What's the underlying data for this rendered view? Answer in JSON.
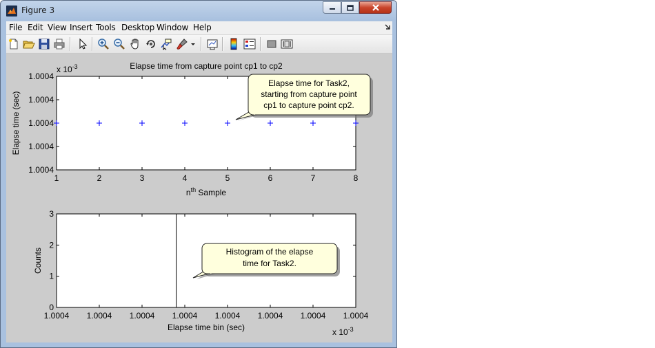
{
  "window": {
    "title": "Figure 3"
  },
  "menu": [
    "File",
    "Edit",
    "View",
    "Insert",
    "Tools",
    "Desktop",
    "Window",
    "Help"
  ],
  "toolbar": {
    "icons": [
      "new-figure-icon",
      "open-file-icon",
      "save-icon",
      "print-icon",
      "pointer-icon",
      "zoom-in-icon",
      "zoom-out-icon",
      "pan-hand-icon",
      "rotate-3d-icon",
      "data-cursor-icon",
      "brush-icon",
      "brush-dropdown-icon",
      "link-plot-icon",
      "colorbar-icon",
      "legend-icon",
      "hide-plot-tools-icon",
      "show-plot-tools-icon"
    ]
  },
  "colors": {
    "figure_bg": "#cccccc",
    "marker": "#0000ff",
    "callout_bg": "#ffffdd"
  },
  "chart_data": [
    {
      "type": "scatter",
      "title": "Elapse time from capture point cp1 to cp2",
      "xlabel_main": "n",
      "xlabel_sup": "th",
      "xlabel_rest": " Sample",
      "ylabel": "Elapse time (sec)",
      "y_exponent_base": "x 10",
      "y_exponent_power": "-3",
      "xlim": [
        1,
        8
      ],
      "x_ticks": [
        "1",
        "2",
        "3",
        "4",
        "5",
        "6",
        "7",
        "8"
      ],
      "y_ticks": [
        "1.0004",
        "1.0004",
        "1.0004",
        "1.0004",
        "1.0004"
      ],
      "marker": "+",
      "x": [
        1,
        2,
        3,
        4,
        5,
        6,
        7,
        8
      ],
      "y_level_fraction": 0.5,
      "grid": false,
      "annotation": {
        "lines": [
          "Elapse time for Task2,",
          "starting from capture point",
          "cp1 to capture point cp2."
        ]
      }
    },
    {
      "type": "bar",
      "title": "",
      "xlabel": "Elapse time bin (sec)",
      "ylabel": "Counts",
      "x_exponent_base": "x 10",
      "x_exponent_power": "-3",
      "x_ticks": [
        "1.0004",
        "1.0004",
        "1.0004",
        "1.0004",
        "1.0004",
        "1.0004",
        "1.0004",
        "1.0004"
      ],
      "y_ticks": [
        "0",
        "1",
        "2",
        "3"
      ],
      "ylim": [
        0,
        3
      ],
      "bin_line_fraction": 0.4,
      "grid": false,
      "annotation": {
        "lines": [
          "Histogram of the elapse",
          "time for Task2."
        ]
      }
    }
  ]
}
